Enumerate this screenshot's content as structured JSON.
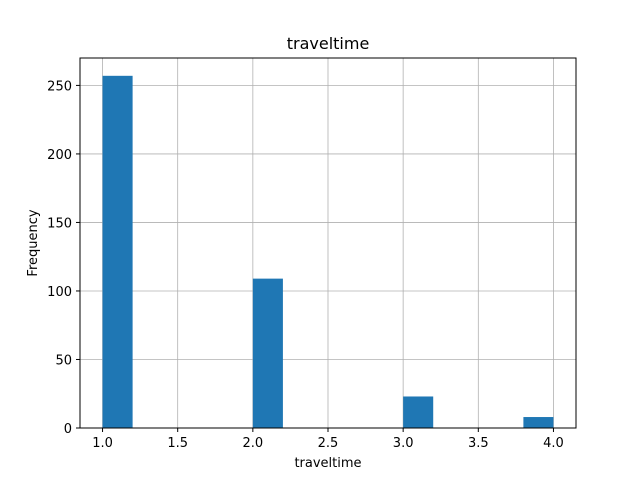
{
  "chart_data": {
    "type": "bar",
    "title": "traveltime",
    "xlabel": "traveltime",
    "ylabel": "Frequency",
    "bins": [
      {
        "start": 1.0,
        "end": 1.2,
        "count": 257
      },
      {
        "start": 1.2,
        "end": 1.4,
        "count": 0
      },
      {
        "start": 1.4,
        "end": 1.6,
        "count": 0
      },
      {
        "start": 1.6,
        "end": 1.8,
        "count": 0
      },
      {
        "start": 1.8,
        "end": 2.0,
        "count": 0
      },
      {
        "start": 2.0,
        "end": 2.2,
        "count": 109
      },
      {
        "start": 2.2,
        "end": 2.4,
        "count": 0
      },
      {
        "start": 2.4,
        "end": 2.6,
        "count": 0
      },
      {
        "start": 2.6,
        "end": 2.8,
        "count": 0
      },
      {
        "start": 2.8,
        "end": 3.0,
        "count": 0
      },
      {
        "start": 3.0,
        "end": 3.2,
        "count": 23
      },
      {
        "start": 3.2,
        "end": 3.4,
        "count": 0
      },
      {
        "start": 3.4,
        "end": 3.6,
        "count": 0
      },
      {
        "start": 3.6,
        "end": 3.8,
        "count": 0
      },
      {
        "start": 3.8,
        "end": 4.0,
        "count": 8
      }
    ],
    "xlim": [
      0.85,
      4.15
    ],
    "ylim": [
      0,
      270
    ],
    "xticks": [
      1.0,
      1.5,
      2.0,
      2.5,
      3.0,
      3.5,
      4.0
    ],
    "xtick_labels": [
      "1.0",
      "1.5",
      "2.0",
      "2.5",
      "3.0",
      "3.5",
      "4.0"
    ],
    "yticks": [
      0,
      50,
      100,
      150,
      200,
      250
    ],
    "ytick_labels": [
      "0",
      "50",
      "100",
      "150",
      "200",
      "250"
    ],
    "grid": true,
    "bar_color": "#1f77b4",
    "grid_color": "#b0b0b0"
  }
}
